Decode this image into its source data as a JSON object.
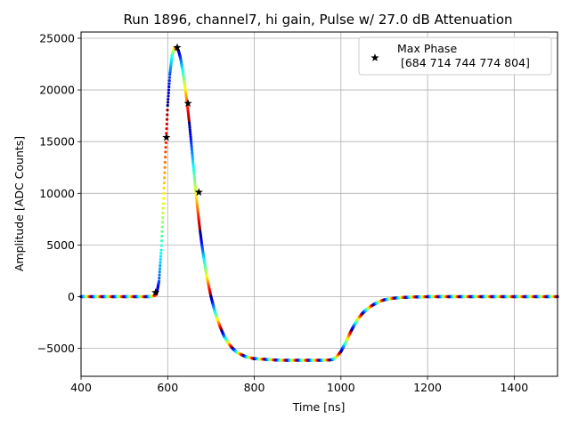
{
  "chart_data": {
    "type": "scatter",
    "title": "Run 1896, channel7, hi gain, Pulse w/ 27.0 dB Attenuation",
    "xlabel": "Time [ns]",
    "ylabel": "Amplitude [ADC Counts]",
    "xlim": [
      400,
      1500
    ],
    "ylim": [
      -7700,
      25600
    ],
    "xticks": [
      400,
      600,
      800,
      1000,
      1200,
      1400
    ],
    "yticks": [
      -5000,
      0,
      5000,
      10000,
      15000,
      20000,
      25000
    ],
    "xtick_labels": [
      "400",
      "600",
      "800",
      "1000",
      "1200",
      "1400"
    ],
    "ytick_labels": [
      "−5000",
      "0",
      "5000",
      "10000",
      "15000",
      "20000",
      "25000"
    ],
    "grid": true,
    "legend_position": "top-right",
    "colormap": "jet",
    "series": [
      {
        "kind": "waveform",
        "x": [
          400,
          560,
          570,
          575,
          580,
          585,
          590,
          595,
          600,
          605,
          610,
          615,
          620,
          625,
          630,
          635,
          640,
          645,
          650,
          655,
          660,
          665,
          670,
          675,
          680,
          690,
          700,
          710,
          720,
          730,
          740,
          750,
          760,
          770,
          780,
          790,
          800,
          820,
          840,
          860,
          880,
          900,
          920,
          940,
          960,
          980,
          990,
          1000,
          1010,
          1020,
          1030,
          1040,
          1050,
          1060,
          1070,
          1080,
          1090,
          1100,
          1120,
          1140,
          1160,
          1180,
          1200,
          1250,
          1300,
          1400,
          1500
        ],
        "y": [
          0,
          0,
          100,
          400,
          1500,
          4500,
          9000,
          14000,
          18500,
          21500,
          23300,
          24000,
          24100,
          23800,
          23000,
          21800,
          20300,
          18700,
          16800,
          14600,
          12300,
          10100,
          8100,
          6300,
          4700,
          2000,
          0,
          -1600,
          -2800,
          -3800,
          -4500,
          -5000,
          -5400,
          -5600,
          -5800,
          -5900,
          -6000,
          -6050,
          -6100,
          -6150,
          -6150,
          -6150,
          -6150,
          -6150,
          -6150,
          -6100,
          -5800,
          -5300,
          -4500,
          -3600,
          -2800,
          -2100,
          -1600,
          -1200,
          -900,
          -650,
          -450,
          -300,
          -150,
          -80,
          -40,
          -20,
          0,
          0,
          0,
          0,
          0
        ]
      },
      {
        "name": "Max Phase\n [684 714 744 774 804]",
        "kind": "markers",
        "marker": "star",
        "x": [
          572,
          597,
          622,
          647,
          672
        ],
        "y": [
          400,
          15400,
          24100,
          18700,
          10100
        ]
      }
    ]
  },
  "legend": {
    "line1": "Max Phase",
    "line2": " [684 714 744 774 804]"
  }
}
